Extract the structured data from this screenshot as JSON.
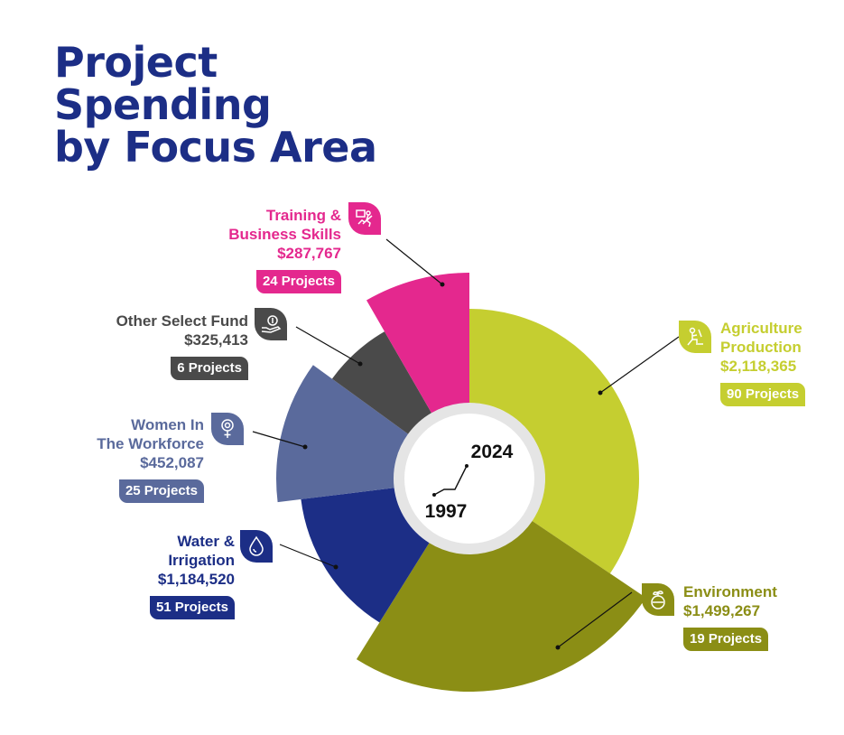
{
  "title": {
    "line1": "Project",
    "line2": "Spending",
    "line3": "by Focus Area"
  },
  "chart_data": {
    "type": "pie",
    "title": "Project Spending by Focus Area",
    "center_labels": {
      "end_year": "2024",
      "start_year": "1997"
    },
    "series": [
      {
        "name": "Agriculture Production",
        "value": 2118365,
        "value_label": "$2,118,365",
        "projects": 90,
        "projects_label": "90 Projects",
        "color": "#c5ce30",
        "icon": "farmer-icon"
      },
      {
        "name": "Environment",
        "value": 1499267,
        "value_label": "$1,499,267",
        "projects": 19,
        "projects_label": "19 Projects",
        "color": "#8b8e15",
        "icon": "plant-globe-icon"
      },
      {
        "name": "Water & Irrigation",
        "value": 1184520,
        "value_label": "$1,184,520",
        "projects": 51,
        "projects_label": "51 Projects",
        "color": "#1c2e86",
        "icon": "water-drop-icon"
      },
      {
        "name": "Women In The Workforce",
        "value": 452087,
        "value_label": "$452,087",
        "projects": 25,
        "projects_label": "25 Projects",
        "color": "#5a6a9c",
        "icon": "female-gear-icon"
      },
      {
        "name": "Other Select Fund",
        "value": 325413,
        "value_label": "$325,413",
        "projects": 6,
        "projects_label": "6 Projects",
        "color": "#4a4a4a",
        "icon": "hand-coin-icon"
      },
      {
        "name": "Training & Business Skills",
        "value": 287767,
        "value_label": "$287,767",
        "projects": 24,
        "projects_label": "24 Projects",
        "color": "#e4288e",
        "icon": "training-chart-icon"
      }
    ]
  },
  "labels": {
    "agri": {
      "l1": "Agriculture",
      "l2": "Production"
    },
    "env": {
      "l1": "Environment"
    },
    "water": {
      "l1": "Water &",
      "l2": "Irrigation"
    },
    "women": {
      "l1": "Women In",
      "l2": "The Workforce"
    },
    "other": {
      "l1": "Other Select Fund"
    },
    "train": {
      "l1": "Training &",
      "l2": "Business Skills"
    }
  }
}
